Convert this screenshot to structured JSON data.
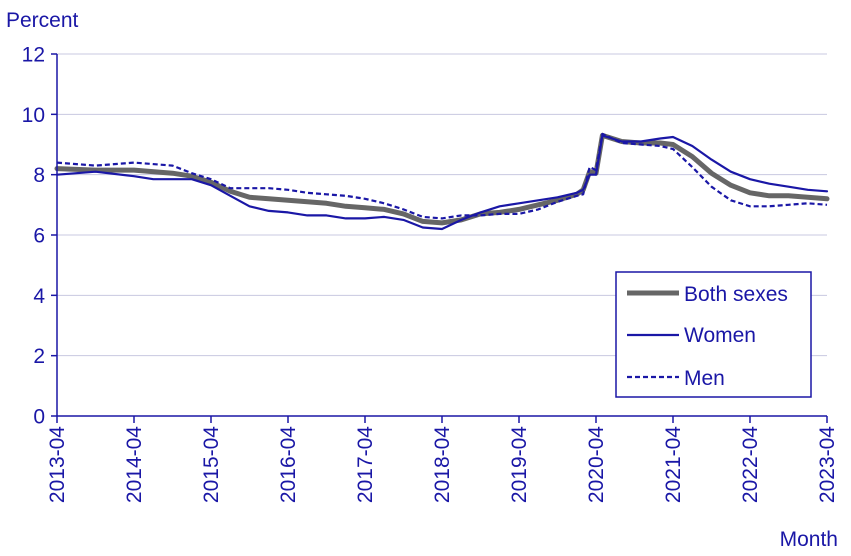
{
  "chart_data": {
    "type": "line",
    "ylabel": "Percent",
    "xlabel": "Month",
    "ylim": [
      0,
      12
    ],
    "yticks": [
      0,
      2,
      4,
      6,
      8,
      10,
      12
    ],
    "ytick_labels": [
      "0",
      "2",
      "4",
      "6",
      "8",
      "10",
      "12"
    ],
    "xlim": [
      "2013-04",
      "2023-04"
    ],
    "xtick_labels": [
      "2013-04",
      "2014-04",
      "2015-04",
      "2016-04",
      "2017-04",
      "2018-04",
      "2019-04",
      "2020-04",
      "2021-04",
      "2022-04",
      "2023-04"
    ],
    "grid": "horizontal",
    "legend_position": "bottom-right",
    "colors": {
      "axis_text": "#1a17a6",
      "grid": "#c8c8e0"
    },
    "series": [
      {
        "name": "Both sexes",
        "color": "#666666",
        "style": "solid-thick",
        "points": [
          [
            "2013-04",
            8.2
          ],
          [
            "2013-10",
            8.15
          ],
          [
            "2014-04",
            8.15
          ],
          [
            "2014-10",
            8.05
          ],
          [
            "2015-01",
            7.95
          ],
          [
            "2015-04",
            7.75
          ],
          [
            "2015-07",
            7.45
          ],
          [
            "2015-10",
            7.25
          ],
          [
            "2016-01",
            7.2
          ],
          [
            "2016-04",
            7.15
          ],
          [
            "2016-07",
            7.1
          ],
          [
            "2016-10",
            7.05
          ],
          [
            "2017-01",
            6.95
          ],
          [
            "2017-04",
            6.9
          ],
          [
            "2017-07",
            6.85
          ],
          [
            "2017-10",
            6.7
          ],
          [
            "2018-01",
            6.45
          ],
          [
            "2018-04",
            6.4
          ],
          [
            "2018-07",
            6.5
          ],
          [
            "2018-10",
            6.7
          ],
          [
            "2019-01",
            6.75
          ],
          [
            "2019-04",
            6.85
          ],
          [
            "2019-07",
            7.0
          ],
          [
            "2019-10",
            7.15
          ],
          [
            "2020-01",
            7.35
          ],
          [
            "2020-02",
            7.5
          ],
          [
            "2020-03",
            8.1
          ],
          [
            "2020-04",
            8.05
          ],
          [
            "2020-05",
            9.3
          ],
          [
            "2020-08",
            9.1
          ],
          [
            "2020-11",
            9.05
          ],
          [
            "2021-02",
            9.05
          ],
          [
            "2021-04",
            9.0
          ],
          [
            "2021-07",
            8.6
          ],
          [
            "2021-10",
            8.05
          ],
          [
            "2022-01",
            7.65
          ],
          [
            "2022-04",
            7.4
          ],
          [
            "2022-07",
            7.3
          ],
          [
            "2022-10",
            7.3
          ],
          [
            "2023-01",
            7.25
          ],
          [
            "2023-04",
            7.2
          ]
        ]
      },
      {
        "name": "Women",
        "color": "#1a17a6",
        "style": "solid",
        "points": [
          [
            "2013-04",
            8.0
          ],
          [
            "2013-10",
            8.1
          ],
          [
            "2014-04",
            7.95
          ],
          [
            "2014-07",
            7.85
          ],
          [
            "2015-01",
            7.85
          ],
          [
            "2015-04",
            7.65
          ],
          [
            "2015-07",
            7.3
          ],
          [
            "2015-10",
            6.95
          ],
          [
            "2016-01",
            6.8
          ],
          [
            "2016-04",
            6.75
          ],
          [
            "2016-07",
            6.65
          ],
          [
            "2016-10",
            6.65
          ],
          [
            "2017-01",
            6.55
          ],
          [
            "2017-04",
            6.55
          ],
          [
            "2017-07",
            6.6
          ],
          [
            "2017-10",
            6.5
          ],
          [
            "2018-01",
            6.25
          ],
          [
            "2018-04",
            6.2
          ],
          [
            "2018-07",
            6.5
          ],
          [
            "2018-10",
            6.75
          ],
          [
            "2019-01",
            6.95
          ],
          [
            "2019-04",
            7.05
          ],
          [
            "2019-07",
            7.15
          ],
          [
            "2019-10",
            7.25
          ],
          [
            "2020-01",
            7.4
          ],
          [
            "2020-02",
            7.5
          ],
          [
            "2020-03",
            8.0
          ],
          [
            "2020-04",
            8.0
          ],
          [
            "2020-05",
            9.3
          ],
          [
            "2020-08",
            9.1
          ],
          [
            "2020-11",
            9.1
          ],
          [
            "2021-02",
            9.2
          ],
          [
            "2021-04",
            9.25
          ],
          [
            "2021-07",
            8.95
          ],
          [
            "2021-10",
            8.5
          ],
          [
            "2022-01",
            8.1
          ],
          [
            "2022-04",
            7.85
          ],
          [
            "2022-07",
            7.7
          ],
          [
            "2022-10",
            7.6
          ],
          [
            "2023-01",
            7.5
          ],
          [
            "2023-04",
            7.45
          ]
        ]
      },
      {
        "name": "Men",
        "color": "#1a17a6",
        "style": "dashed",
        "points": [
          [
            "2013-04",
            8.4
          ],
          [
            "2013-10",
            8.3
          ],
          [
            "2014-04",
            8.4
          ],
          [
            "2014-10",
            8.3
          ],
          [
            "2015-01",
            8.05
          ],
          [
            "2015-04",
            7.85
          ],
          [
            "2015-07",
            7.55
          ],
          [
            "2015-10",
            7.55
          ],
          [
            "2016-01",
            7.55
          ],
          [
            "2016-04",
            7.5
          ],
          [
            "2016-07",
            7.4
          ],
          [
            "2016-10",
            7.35
          ],
          [
            "2017-01",
            7.3
          ],
          [
            "2017-04",
            7.2
          ],
          [
            "2017-07",
            7.05
          ],
          [
            "2017-10",
            6.85
          ],
          [
            "2018-01",
            6.6
          ],
          [
            "2018-04",
            6.55
          ],
          [
            "2018-07",
            6.65
          ],
          [
            "2018-10",
            6.65
          ],
          [
            "2019-01",
            6.7
          ],
          [
            "2019-04",
            6.7
          ],
          [
            "2019-07",
            6.85
          ],
          [
            "2019-10",
            7.1
          ],
          [
            "2020-01",
            7.3
          ],
          [
            "2020-02",
            7.35
          ],
          [
            "2020-03",
            8.25
          ],
          [
            "2020-04",
            8.15
          ],
          [
            "2020-05",
            9.35
          ],
          [
            "2020-08",
            9.05
          ],
          [
            "2020-11",
            9.0
          ],
          [
            "2021-02",
            8.95
          ],
          [
            "2021-04",
            8.85
          ],
          [
            "2021-07",
            8.25
          ],
          [
            "2021-10",
            7.6
          ],
          [
            "2022-01",
            7.15
          ],
          [
            "2022-04",
            6.95
          ],
          [
            "2022-07",
            6.95
          ],
          [
            "2022-10",
            7.0
          ],
          [
            "2023-01",
            7.05
          ],
          [
            "2023-04",
            7.0
          ]
        ]
      }
    ]
  }
}
